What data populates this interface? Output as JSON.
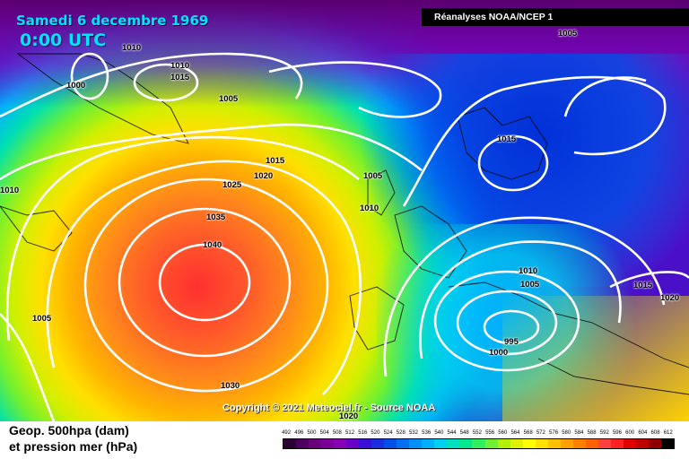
{
  "header": {
    "title": "Samedi 6 decembre 1969",
    "time": "0:00 UTC",
    "source": "Réanalyses NOAA/NCEP 1"
  },
  "copyright": "Copyright © 2021 Meteociel.fr - Source NOAA",
  "footer": {
    "line1": "Geop. 500hpa (dam)",
    "line2": "et pression mer (hPa)"
  },
  "scale": {
    "values": [
      "492",
      "496",
      "500",
      "504",
      "508",
      "512",
      "516",
      "520",
      "524",
      "528",
      "532",
      "536",
      "540",
      "544",
      "548",
      "552",
      "556",
      "560",
      "564",
      "568",
      "572",
      "576",
      "580",
      "584",
      "588",
      "592",
      "596",
      "600",
      "604",
      "608",
      "612"
    ],
    "colors": [
      "#2a0030",
      "#4b0060",
      "#6a007a",
      "#7b0099",
      "#8a00b5",
      "#6a00c8",
      "#3a10d8",
      "#1a30e0",
      "#0050e8",
      "#0070f0",
      "#0090f8",
      "#00b0ff",
      "#00d0f0",
      "#00e0c0",
      "#00e890",
      "#30f060",
      "#70f030",
      "#b0f000",
      "#e0f000",
      "#ffff00",
      "#ffe000",
      "#ffc000",
      "#ffa000",
      "#ff8000",
      "#ff6000",
      "#ff4040",
      "#ff2020",
      "#e00000",
      "#c00000",
      "#900000",
      "#000000"
    ]
  },
  "isobars": [
    {
      "id": "l1010a",
      "text": "1010"
    },
    {
      "id": "l1010b",
      "text": "1010"
    },
    {
      "id": "l1015a",
      "text": "1015"
    },
    {
      "id": "l1000a",
      "text": "1000"
    },
    {
      "id": "l1005a",
      "text": "1005"
    },
    {
      "id": "l1005top",
      "text": "1005"
    },
    {
      "id": "l1015b",
      "text": "1015"
    },
    {
      "id": "l1010c",
      "text": "1010"
    },
    {
      "id": "l1015c",
      "text": "1015"
    },
    {
      "id": "l1020a",
      "text": "1020"
    },
    {
      "id": "l1025",
      "text": "1025"
    },
    {
      "id": "l1005b",
      "text": "1005"
    },
    {
      "id": "l1010d",
      "text": "1010"
    },
    {
      "id": "l1035",
      "text": "1035"
    },
    {
      "id": "l1040",
      "text": "1040"
    },
    {
      "id": "l1010e",
      "text": "1010"
    },
    {
      "id": "l1005c",
      "text": "1005"
    },
    {
      "id": "l1015d",
      "text": "1015"
    },
    {
      "id": "l1020b",
      "text": "1020"
    },
    {
      "id": "l995",
      "text": "995"
    },
    {
      "id": "l1000b",
      "text": "1000"
    },
    {
      "id": "l1005d",
      "text": "1005"
    },
    {
      "id": "l1030",
      "text": "1030"
    },
    {
      "id": "l1020c",
      "text": "1020"
    }
  ]
}
